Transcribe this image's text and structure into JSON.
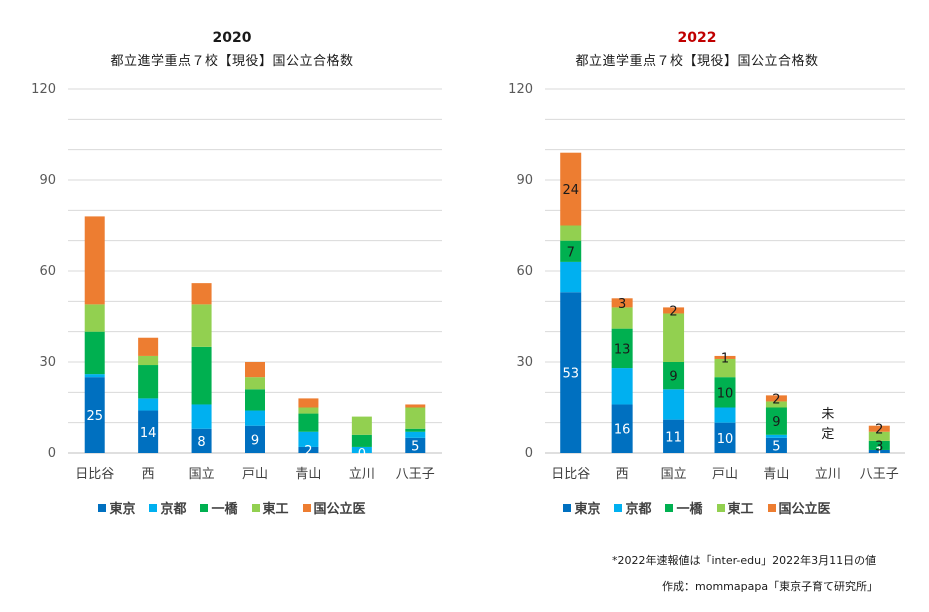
{
  "chart_data": [
    {
      "type": "bar",
      "stacked": true,
      "title": "2020",
      "title_color": "#1a1a1a",
      "subtitle": "都立進学重点７校【現役】国公立合格数",
      "categories": [
        "日比谷",
        "西",
        "国立",
        "戸山",
        "青山",
        "立川",
        "八王子"
      ],
      "ylim": [
        0,
        120
      ],
      "yticks": [
        "0",
        "30",
        "60",
        "90",
        "120"
      ],
      "grid": true,
      "legend_position": "bottom",
      "series": [
        {
          "name": "東京",
          "color": "#0070C0",
          "values": [
            25,
            14,
            8,
            9,
            2,
            0,
            5
          ]
        },
        {
          "name": "京都",
          "color": "#00B0F0",
          "values": [
            1,
            4,
            8,
            5,
            5,
            2,
            2
          ]
        },
        {
          "name": "一橋",
          "color": "#00B050",
          "values": [
            14,
            11,
            19,
            7,
            6,
            4,
            1
          ]
        },
        {
          "name": "東工",
          "color": "#92D050",
          "values": [
            9,
            3,
            14,
            4,
            2,
            6,
            7
          ]
        },
        {
          "name": "国公立医",
          "color": "#ED7D31",
          "values": [
            29,
            6,
            7,
            5,
            3,
            0,
            1
          ]
        }
      ],
      "data_labels": [
        {
          "series": 0,
          "category": 0,
          "text": "25",
          "color": "#ffffff"
        },
        {
          "series": 0,
          "category": 1,
          "text": "14",
          "color": "#ffffff"
        },
        {
          "series": 0,
          "category": 2,
          "text": "8",
          "color": "#ffffff"
        },
        {
          "series": 0,
          "category": 3,
          "text": "9",
          "color": "#ffffff"
        },
        {
          "series": 0,
          "category": 4,
          "text": "2",
          "color": "#ffffff"
        },
        {
          "series": 0,
          "category": 5,
          "text": "0",
          "color": "#ffffff"
        },
        {
          "series": 0,
          "category": 6,
          "text": "5",
          "color": "#ffffff"
        }
      ],
      "annotations": []
    },
    {
      "type": "bar",
      "stacked": true,
      "title": "2022",
      "title_color": "#C00000",
      "subtitle": "都立進学重点７校【現役】国公立合格数",
      "categories": [
        "日比谷",
        "西",
        "国立",
        "戸山",
        "青山",
        "立川",
        "八王子"
      ],
      "ylim": [
        0,
        120
      ],
      "yticks": [
        "0",
        "30",
        "60",
        "90",
        "120"
      ],
      "grid": true,
      "legend_position": "bottom",
      "series": [
        {
          "name": "東京",
          "color": "#0070C0",
          "values": [
            53,
            16,
            11,
            10,
            5,
            0,
            1
          ]
        },
        {
          "name": "京都",
          "color": "#00B0F0",
          "values": [
            10,
            12,
            10,
            5,
            1,
            0,
            0
          ]
        },
        {
          "name": "一橋",
          "color": "#00B050",
          "values": [
            7,
            13,
            9,
            10,
            9,
            0,
            3
          ]
        },
        {
          "name": "東工",
          "color": "#92D050",
          "values": [
            5,
            7,
            16,
            6,
            2,
            0,
            3
          ]
        },
        {
          "name": "国公立医",
          "color": "#ED7D31",
          "values": [
            24,
            3,
            2,
            1,
            2,
            0,
            2
          ]
        }
      ],
      "data_labels": [
        {
          "series": 0,
          "category": 0,
          "text": "53",
          "color": "#ffffff"
        },
        {
          "series": 0,
          "category": 1,
          "text": "16",
          "color": "#ffffff"
        },
        {
          "series": 0,
          "category": 2,
          "text": "11",
          "color": "#ffffff"
        },
        {
          "series": 0,
          "category": 3,
          "text": "10",
          "color": "#ffffff"
        },
        {
          "series": 0,
          "category": 4,
          "text": "5",
          "color": "#ffffff"
        },
        {
          "series": 0,
          "category": 6,
          "text": "1",
          "color": "#ffffff"
        },
        {
          "series": 2,
          "category": 0,
          "text": "7",
          "color": "#1a1a1a"
        },
        {
          "series": 2,
          "category": 1,
          "text": "13",
          "color": "#1a1a1a"
        },
        {
          "series": 2,
          "category": 2,
          "text": "9",
          "color": "#1a1a1a"
        },
        {
          "series": 2,
          "category": 3,
          "text": "10",
          "color": "#1a1a1a"
        },
        {
          "series": 2,
          "category": 4,
          "text": "9",
          "color": "#1a1a1a"
        },
        {
          "series": 2,
          "category": 6,
          "text": "3",
          "color": "#1a1a1a"
        },
        {
          "series": 4,
          "category": 0,
          "text": "24",
          "color": "#1a1a1a"
        },
        {
          "series": 4,
          "category": 1,
          "text": "3",
          "color": "#1a1a1a"
        },
        {
          "series": 4,
          "category": 2,
          "text": "2",
          "color": "#1a1a1a"
        },
        {
          "series": 4,
          "category": 3,
          "text": "1",
          "color": "#1a1a1a"
        },
        {
          "series": 4,
          "category": 4,
          "text": "2",
          "color": "#1a1a1a"
        },
        {
          "series": 4,
          "category": 6,
          "text": "2",
          "color": "#1a1a1a"
        }
      ],
      "annotations": [
        {
          "category": 5,
          "lines": [
            "未",
            "定"
          ]
        }
      ]
    }
  ],
  "notes": {
    "source": "*2022年速報値は「inter-edu」2022年3月11日の値",
    "author": "作成：mommapapa「東京子育て研究所」"
  }
}
